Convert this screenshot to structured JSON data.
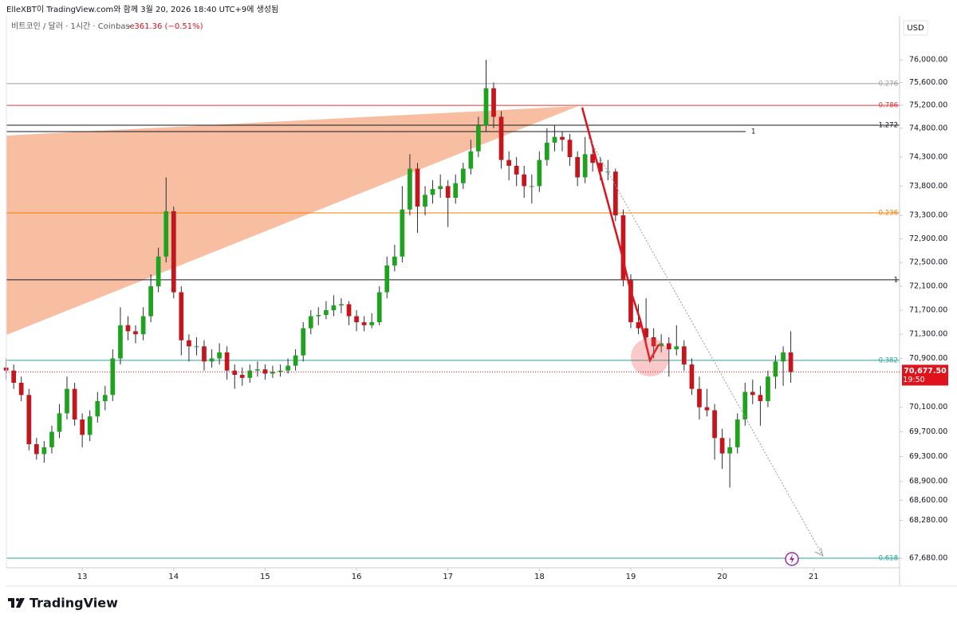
{
  "header": {
    "credit": "ElleXBT이 TradingView.com와 함께 3월 20, 2026 18:40 UTC+9에 생성됨",
    "symbol": "비트코인 / 달러 · 1시간 · Coinbase",
    "change": "−361.36 (−0.51%)",
    "currency": "USD"
  },
  "footer": {
    "brand": "TradingView"
  },
  "chart_data": {
    "type": "candlestick",
    "log_scale": true,
    "up_color": "#1fa31f",
    "down_color": "#c4161c",
    "wick_color": "#2a2e39",
    "xlim": [
      12.17,
      21.94
    ],
    "xticks": [
      13,
      14,
      15,
      16,
      17,
      18,
      19,
      20,
      21
    ],
    "ylim": [
      67530,
      76780
    ],
    "yticks": [
      {
        "value": 76000,
        "label": "76,000.00"
      },
      {
        "value": 75600,
        "label": "75,600.00"
      },
      {
        "value": 75200,
        "label": "75,200.00"
      },
      {
        "value": 74800,
        "label": "74,800.00"
      },
      {
        "value": 74300,
        "label": "74,300.00"
      },
      {
        "value": 73800,
        "label": "73,800.00"
      },
      {
        "value": 73300,
        "label": "73,300.00"
      },
      {
        "value": 72900,
        "label": "72,900.00"
      },
      {
        "value": 72500,
        "label": "72,500.00"
      },
      {
        "value": 72100,
        "label": "72,100.00"
      },
      {
        "value": 71700,
        "label": "71,700.00"
      },
      {
        "value": 71300,
        "label": "71,300.00"
      },
      {
        "value": 70900,
        "label": "70,900.00"
      },
      {
        "value": 70100,
        "label": "70,100.00"
      },
      {
        "value": 69700,
        "label": "69,700.00"
      },
      {
        "value": 69300,
        "label": "69,300.00"
      },
      {
        "value": 68900,
        "label": "68,900.00"
      },
      {
        "value": 68600,
        "label": "68,600.00"
      },
      {
        "value": 68280,
        "label": "68,280.00"
      },
      {
        "value": 67680,
        "label": "67,680.00"
      }
    ],
    "levels": [
      {
        "label": "0.276",
        "value": 75580,
        "color": "#9e9e9e"
      },
      {
        "label": "0.786",
        "value": 75200,
        "color": "#e53935"
      },
      {
        "label": "1.272",
        "value": 74853,
        "color": "#131722"
      },
      {
        "label": "0.236",
        "value": 73342,
        "color": "#f57c00"
      },
      {
        "label": "1",
        "value": 72209,
        "color": "#131722"
      },
      {
        "label": "0.382",
        "value": 70868,
        "color": "#26a69a"
      },
      {
        "label": "0.618",
        "value": 67680,
        "color": "#26a69a"
      }
    ],
    "ray": {
      "label": "1",
      "value": 74742,
      "color": "#131722"
    },
    "price_label": {
      "value": 70677.5,
      "label": "70,677.50",
      "time": "19:50",
      "color": "#e0121b"
    },
    "x": [
      12.167,
      12.25,
      12.333,
      12.417,
      12.5,
      12.583,
      12.667,
      12.75,
      12.833,
      12.917,
      13,
      13.083,
      13.167,
      13.25,
      13.333,
      13.417,
      13.5,
      13.583,
      13.667,
      13.75,
      13.833,
      13.917,
      14,
      14.083,
      14.167,
      14.25,
      14.333,
      14.417,
      14.5,
      14.583,
      14.667,
      14.75,
      14.833,
      14.917,
      15,
      15.083,
      15.167,
      15.25,
      15.333,
      15.417,
      15.5,
      15.583,
      15.667,
      15.75,
      15.833,
      15.917,
      16,
      16.083,
      16.167,
      16.25,
      16.333,
      16.417,
      16.5,
      16.583,
      16.667,
      16.75,
      16.833,
      16.917,
      17,
      17.083,
      17.167,
      17.25,
      17.333,
      17.417,
      17.5,
      17.583,
      17.667,
      17.75,
      17.833,
      17.917,
      18,
      18.083,
      18.167,
      18.25,
      18.333,
      18.417,
      18.5,
      18.583,
      18.667,
      18.75,
      18.833,
      18.917,
      19,
      19.083,
      19.167,
      19.25,
      19.333,
      19.417,
      19.5,
      19.583,
      19.667,
      19.75,
      19.833,
      19.917,
      20,
      20.083,
      20.167,
      20.25,
      20.333,
      20.417,
      20.5,
      20.583,
      20.667,
      20.75
    ],
    "candles": [
      [
        70750,
        70900,
        70550,
        70700
      ],
      [
        70700,
        70800,
        70400,
        70500
      ],
      [
        70500,
        70600,
        70200,
        70300
      ],
      [
        70300,
        70400,
        69400,
        69500
      ],
      [
        69500,
        69600,
        69250,
        69340
      ],
      [
        69340,
        69550,
        69200,
        69450
      ],
      [
        69450,
        69800,
        69350,
        69700
      ],
      [
        69700,
        70150,
        69600,
        70000
      ],
      [
        70000,
        70600,
        69900,
        70400
      ],
      [
        70400,
        70500,
        69800,
        69900
      ],
      [
        69900,
        70000,
        69450,
        69650
      ],
      [
        69650,
        70050,
        69550,
        69950
      ],
      [
        69950,
        70350,
        69850,
        70200
      ],
      [
        70200,
        70450,
        70050,
        70300
      ],
      [
        70300,
        71050,
        70200,
        70900
      ],
      [
        70900,
        71750,
        70800,
        71450
      ],
      [
        71450,
        71600,
        71200,
        71350
      ],
      [
        71350,
        71450,
        71150,
        71300
      ],
      [
        71300,
        71750,
        71200,
        71600
      ],
      [
        71600,
        72300,
        71500,
        72100
      ],
      [
        72100,
        72750,
        72000,
        72600
      ],
      [
        72600,
        73950,
        72500,
        73370
      ],
      [
        73370,
        73450,
        71900,
        72000
      ],
      [
        72000,
        72100,
        70950,
        71200
      ],
      [
        71200,
        71300,
        70850,
        71100
      ],
      [
        71100,
        71250,
        70950,
        71100
      ],
      [
        71100,
        71200,
        70700,
        70850
      ],
      [
        70850,
        71050,
        70750,
        70900
      ],
      [
        70900,
        71150,
        70800,
        71000
      ],
      [
        71000,
        71100,
        70550,
        70700
      ],
      [
        70700,
        70800,
        70400,
        70630
      ],
      [
        70630,
        70750,
        70450,
        70580
      ],
      [
        70580,
        70800,
        70500,
        70700
      ],
      [
        70700,
        70850,
        70600,
        70720
      ],
      [
        70720,
        70800,
        70550,
        70650
      ],
      [
        70650,
        70780,
        70580,
        70680
      ],
      [
        70680,
        70800,
        70600,
        70700
      ],
      [
        70700,
        70900,
        70650,
        70780
      ],
      [
        70780,
        71050,
        70700,
        70950
      ],
      [
        70950,
        71500,
        70850,
        71400
      ],
      [
        71400,
        71700,
        71300,
        71600
      ],
      [
        71600,
        71750,
        71450,
        71620
      ],
      [
        71620,
        71850,
        71550,
        71700
      ],
      [
        71700,
        71950,
        71600,
        71780
      ],
      [
        71780,
        71900,
        71650,
        71800
      ],
      [
        71800,
        71850,
        71450,
        71600
      ],
      [
        71600,
        71700,
        71350,
        71500
      ],
      [
        71500,
        71600,
        71350,
        71450
      ],
      [
        71450,
        71650,
        71400,
        71500
      ],
      [
        71500,
        72100,
        71450,
        72000
      ],
      [
        72000,
        72600,
        71900,
        72450
      ],
      [
        72450,
        72800,
        72350,
        72600
      ],
      [
        72600,
        73800,
        72500,
        73400
      ],
      [
        73400,
        74350,
        73300,
        74100
      ],
      [
        74100,
        74200,
        73000,
        73450
      ],
      [
        73450,
        73800,
        73300,
        73650
      ],
      [
        73650,
        73900,
        73500,
        73750
      ],
      [
        73750,
        74000,
        73600,
        73800
      ],
      [
        73800,
        73900,
        73100,
        73600
      ],
      [
        73600,
        74000,
        73500,
        73850
      ],
      [
        73850,
        74200,
        73750,
        74100
      ],
      [
        74100,
        74600,
        74000,
        74400
      ],
      [
        74400,
        75000,
        74300,
        74850
      ],
      [
        74850,
        76000,
        74750,
        75500
      ],
      [
        75500,
        75600,
        74800,
        75000
      ],
      [
        75000,
        75100,
        74100,
        74250
      ],
      [
        74250,
        74400,
        73900,
        74150
      ],
      [
        74150,
        74300,
        73800,
        74000
      ],
      [
        74000,
        74150,
        73600,
        73800
      ],
      [
        73800,
        74000,
        73500,
        73800
      ],
      [
        73800,
        74400,
        73700,
        74250
      ],
      [
        74250,
        74800,
        74150,
        74550
      ],
      [
        74550,
        74850,
        74400,
        74650
      ],
      [
        74650,
        74750,
        74400,
        74600
      ],
      [
        74600,
        74700,
        74150,
        74300
      ],
      [
        74300,
        74400,
        73800,
        73950
      ],
      [
        73950,
        74650,
        73850,
        74350
      ],
      [
        74350,
        74500,
        74050,
        74200
      ],
      [
        74200,
        74300,
        73900,
        74050
      ],
      [
        74050,
        74250,
        73900,
        74050
      ],
      [
        74050,
        74100,
        73200,
        73300
      ],
      [
        73300,
        73400,
        72100,
        72200
      ],
      [
        72200,
        72300,
        71400,
        71500
      ],
      [
        71500,
        71800,
        71300,
        71400
      ],
      [
        71400,
        71900,
        71150,
        71250
      ],
      [
        71250,
        71400,
        70900,
        71100
      ],
      [
        71100,
        71300,
        71000,
        71150
      ],
      [
        71150,
        71250,
        70600,
        71050
      ],
      [
        71050,
        71450,
        70950,
        71100
      ],
      [
        71100,
        71200,
        70700,
        70800
      ],
      [
        70800,
        70900,
        70300,
        70400
      ],
      [
        70400,
        70600,
        69900,
        70100
      ],
      [
        70100,
        70400,
        69950,
        70050
      ],
      [
        70050,
        70150,
        69250,
        69600
      ],
      [
        69600,
        69750,
        69100,
        69350
      ],
      [
        69350,
        69600,
        68800,
        69450
      ],
      [
        69450,
        70000,
        69350,
        69900
      ],
      [
        69900,
        70500,
        69800,
        70350
      ],
      [
        70350,
        70550,
        70150,
        70300
      ],
      [
        70300,
        70450,
        69800,
        70200
      ],
      [
        70200,
        70700,
        70100,
        70600
      ],
      [
        70600,
        70950,
        70400,
        70850
      ],
      [
        70850,
        71100,
        70450,
        71000
      ],
      [
        71000,
        71350,
        70500,
        70677.5
      ]
    ]
  }
}
